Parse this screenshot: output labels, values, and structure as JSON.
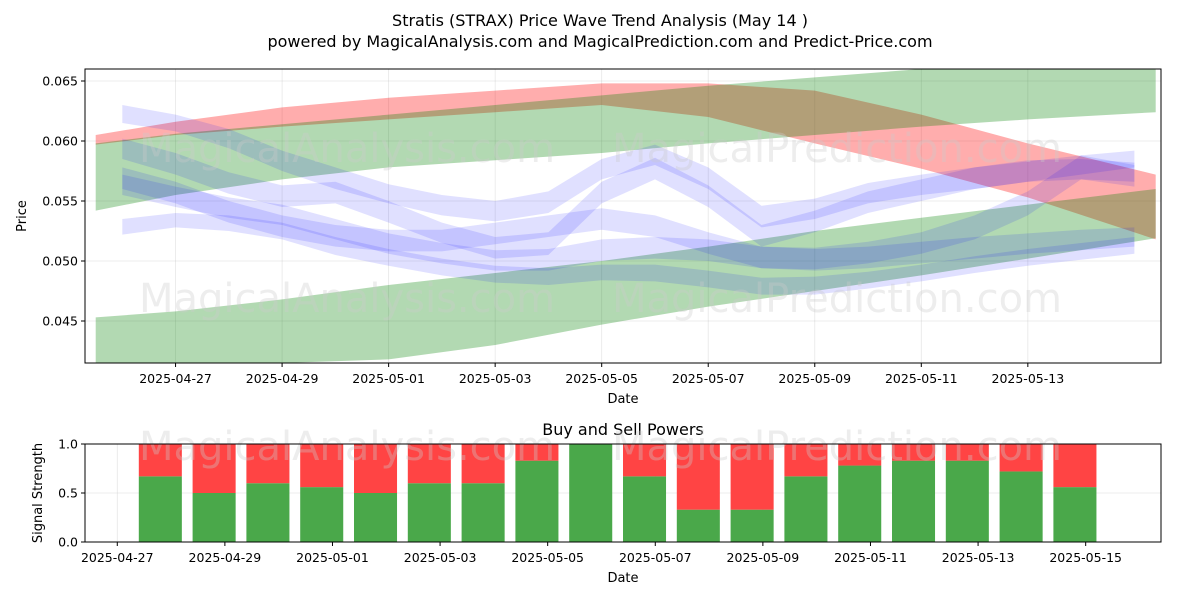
{
  "title": "Stratis (STRAX) Price Wave Trend Analysis (May 14 )",
  "subtitle": "powered by MagicalAnalysis.com and MagicalPrediction.com and Predict-Price.com",
  "watermarks": [
    "MagicalAnalysis.com",
    "MagicalPrediction.com"
  ],
  "colors": {
    "red_band": "#ff0000",
    "green_band": "#008000",
    "blue_band": "#0000ff",
    "buy": "#4aa84a",
    "sell": "#ff4444"
  },
  "chart_data": [
    {
      "type": "area",
      "xlabel": "Date",
      "ylabel": "Price",
      "ylim": [
        0.0415,
        0.066
      ],
      "y_ticks": [
        "0.045",
        "0.050",
        "0.055",
        "0.060",
        "0.065"
      ],
      "y_tick_values": [
        0.045,
        0.05,
        0.055,
        0.06,
        0.065
      ],
      "x_ticks": [
        "2025-04-27",
        "2025-04-29",
        "2025-05-01",
        "2025-05-03",
        "2025-05-05",
        "2025-05-07",
        "2025-05-09",
        "2025-05-11",
        "2025-05-13"
      ],
      "x_tick_days": [
        1,
        3,
        5,
        7,
        9,
        11,
        13,
        15,
        17
      ],
      "x_range_days": [
        -0.7,
        19.5
      ],
      "grid": true,
      "series": [
        {
          "color": "red",
          "x": [
            -0.5,
            1,
            3,
            5,
            7,
            9,
            11,
            13,
            15,
            17,
            19.4
          ],
          "lower": [
            0.0597,
            0.0605,
            0.0612,
            0.0618,
            0.0624,
            0.063,
            0.062,
            0.0598,
            0.0577,
            0.0553,
            0.0518
          ],
          "upper": [
            0.0605,
            0.0616,
            0.0628,
            0.0636,
            0.0642,
            0.0648,
            0.0648,
            0.0642,
            0.0622,
            0.0598,
            0.0572
          ]
        },
        {
          "color": "green",
          "x": [
            -0.5,
            1,
            3,
            5,
            7,
            9,
            11,
            13,
            15,
            17,
            19.4
          ],
          "lower": [
            0.0542,
            0.0555,
            0.0568,
            0.0578,
            0.0584,
            0.059,
            0.0598,
            0.0605,
            0.0612,
            0.0618,
            0.0624
          ],
          "upper": [
            0.0598,
            0.0606,
            0.0614,
            0.0622,
            0.063,
            0.0638,
            0.0646,
            0.0653,
            0.066,
            0.0665,
            0.0665
          ]
        },
        {
          "color": "green",
          "x": [
            -0.5,
            1,
            3,
            5,
            7,
            9,
            11,
            13,
            15,
            17,
            19.4
          ],
          "lower": [
            0.0415,
            0.0415,
            0.0415,
            0.0418,
            0.043,
            0.0447,
            0.0462,
            0.0475,
            0.0488,
            0.0502,
            0.0519
          ],
          "upper": [
            0.0453,
            0.0458,
            0.0468,
            0.048,
            0.049,
            0.05,
            0.0512,
            0.0525,
            0.0536,
            0.0547,
            0.056
          ]
        },
        {
          "color": "blue",
          "x": [
            0,
            1,
            2,
            3,
            4,
            5,
            6,
            7,
            8,
            9,
            10,
            11,
            12,
            13,
            14,
            15,
            16,
            17,
            18,
            19
          ],
          "lower": [
            0.0522,
            0.0528,
            0.0525,
            0.0518,
            0.0505,
            0.0496,
            0.0488,
            0.0482,
            0.048,
            0.0484,
            0.0483,
            0.0478,
            0.0472,
            0.0472,
            0.0477,
            0.0483,
            0.049,
            0.0496,
            0.0501,
            0.0506
          ],
          "upper": [
            0.0535,
            0.054,
            0.0538,
            0.0532,
            0.052,
            0.051,
            0.0502,
            0.0496,
            0.0494,
            0.0497,
            0.0497,
            0.0492,
            0.0486,
            0.0487,
            0.0491,
            0.0497,
            0.0504,
            0.051,
            0.0515,
            0.052
          ]
        },
        {
          "color": "blue",
          "x": [
            0,
            1,
            2,
            3,
            4,
            5,
            6,
            7,
            8,
            9,
            10,
            11,
            12,
            13,
            14,
            15,
            16,
            17,
            18,
            19
          ],
          "lower": [
            0.0615,
            0.0608,
            0.0594,
            0.0575,
            0.056,
            0.0548,
            0.0538,
            0.0533,
            0.054,
            0.0568,
            0.058,
            0.056,
            0.0528,
            0.0535,
            0.0548,
            0.0555,
            0.056,
            0.0566,
            0.0572,
            0.0578
          ],
          "upper": [
            0.063,
            0.0622,
            0.061,
            0.0592,
            0.0578,
            0.0564,
            0.0555,
            0.055,
            0.0558,
            0.0585,
            0.0597,
            0.0578,
            0.0546,
            0.0552,
            0.0565,
            0.0572,
            0.0578,
            0.0583,
            0.0588,
            0.0592
          ]
        },
        {
          "color": "blue",
          "x": [
            0,
            1,
            2,
            3,
            4,
            5,
            6,
            7,
            8,
            9,
            10,
            11,
            12,
            13,
            14,
            15,
            16,
            17,
            18,
            19
          ],
          "lower": [
            0.0585,
            0.0572,
            0.0556,
            0.0545,
            0.0548,
            0.0532,
            0.0515,
            0.0502,
            0.0505,
            0.0548,
            0.0568,
            0.0545,
            0.0512,
            0.0524,
            0.054,
            0.055,
            0.056,
            0.0566,
            0.0568,
            0.0566
          ],
          "upper": [
            0.0602,
            0.059,
            0.0574,
            0.0563,
            0.0566,
            0.055,
            0.0532,
            0.052,
            0.0524,
            0.0566,
            0.0586,
            0.0563,
            0.053,
            0.0542,
            0.0558,
            0.0568,
            0.0578,
            0.0584,
            0.0585,
            0.0582
          ]
        },
        {
          "color": "blue",
          "x": [
            0,
            1,
            2,
            3,
            4,
            5,
            6,
            7,
            8,
            9,
            10,
            11,
            12,
            13,
            14,
            15,
            16,
            17,
            18,
            19
          ],
          "lower": [
            0.056,
            0.0548,
            0.0532,
            0.052,
            0.0512,
            0.0508,
            0.0508,
            0.0514,
            0.052,
            0.0526,
            0.052,
            0.0506,
            0.0494,
            0.0493,
            0.0498,
            0.0506,
            0.0518,
            0.0538,
            0.0568,
            0.0562
          ],
          "upper": [
            0.0578,
            0.0566,
            0.055,
            0.0538,
            0.053,
            0.0526,
            0.0526,
            0.0532,
            0.0538,
            0.0544,
            0.0538,
            0.0524,
            0.0512,
            0.0511,
            0.0516,
            0.0524,
            0.0538,
            0.0558,
            0.0588,
            0.058
          ]
        },
        {
          "color": "blue",
          "x": [
            0,
            1,
            2,
            3,
            4,
            5,
            6,
            7,
            8,
            9,
            10,
            11,
            12,
            13,
            14,
            15,
            16,
            17,
            18,
            19
          ],
          "lower": [
            0.0555,
            0.0545,
            0.0536,
            0.053,
            0.0518,
            0.0506,
            0.0498,
            0.0492,
            0.0492,
            0.05,
            0.0502,
            0.05,
            0.0494,
            0.0492,
            0.0494,
            0.0498,
            0.0502,
            0.0506,
            0.0509,
            0.0512
          ],
          "upper": [
            0.0572,
            0.0562,
            0.0553,
            0.0547,
            0.0535,
            0.0523,
            0.0515,
            0.0509,
            0.051,
            0.0518,
            0.052,
            0.0518,
            0.0512,
            0.051,
            0.0512,
            0.0516,
            0.052,
            0.0523,
            0.0526,
            0.0528
          ]
        }
      ]
    },
    {
      "type": "bar",
      "title": "Buy and Sell Powers",
      "xlabel": "Date",
      "ylabel": "Signal Strength",
      "ylim": [
        0,
        1
      ],
      "y_ticks": [
        "0.0",
        "0.5",
        "1.0"
      ],
      "y_tick_values": [
        0,
        0.5,
        1
      ],
      "x_ticks": [
        "2025-04-27",
        "2025-04-29",
        "2025-05-01",
        "2025-05-03",
        "2025-05-05",
        "2025-05-07",
        "2025-05-09",
        "2025-05-11",
        "2025-05-13",
        "2025-05-15"
      ],
      "x_tick_days": [
        1,
        3,
        5,
        7,
        9,
        11,
        13,
        15,
        17,
        19
      ],
      "x_range_days": [
        0.4,
        20.4
      ],
      "grid": true,
      "categories": [
        "2025-04-27",
        "2025-04-28",
        "2025-04-29",
        "2025-04-30",
        "2025-05-01",
        "2025-05-02",
        "2025-05-03",
        "2025-05-04",
        "2025-05-05",
        "2025-05-06",
        "2025-05-07",
        "2025-05-08",
        "2025-05-09",
        "2025-05-10",
        "2025-05-11",
        "2025-05-12",
        "2025-05-13",
        "2025-05-14"
      ],
      "bar_days": [
        1.8,
        2.8,
        3.8,
        4.8,
        5.8,
        6.8,
        7.8,
        8.8,
        9.8,
        10.8,
        11.8,
        12.8,
        13.8,
        14.8,
        15.8,
        16.8,
        17.8,
        18.8
      ],
      "buy": [
        0.67,
        0.5,
        0.6,
        0.56,
        0.5,
        0.6,
        0.6,
        0.83,
        1.0,
        0.67,
        0.33,
        0.33,
        0.67,
        0.78,
        0.83,
        0.83,
        0.72,
        0.56
      ]
    }
  ]
}
